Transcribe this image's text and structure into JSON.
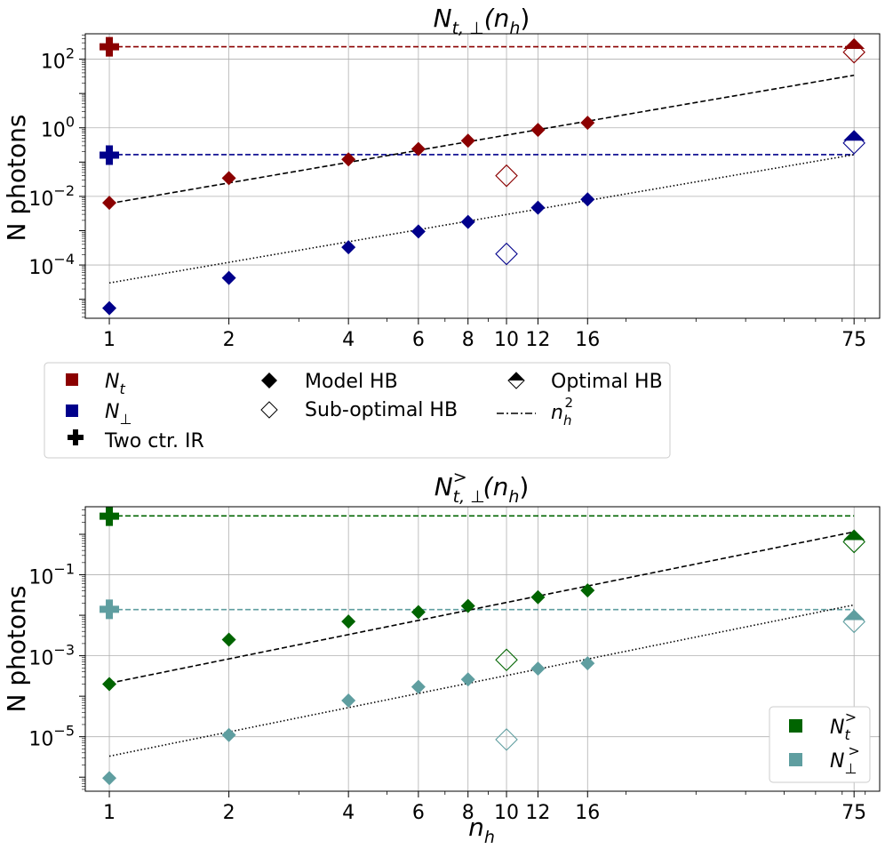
{
  "chart_data": [
    {
      "type": "scatter",
      "title": "N_{t,⊥}(n_h)",
      "title_main": "N",
      "title_sub": "t, ⊥",
      "title_args": "(n",
      "title_args_sub": "h",
      "title_close": ")",
      "xlabel": "",
      "ylabel": "N photons",
      "xscale": "log",
      "yscale": "log",
      "xlim": [
        0.87,
        87
      ],
      "ylim": [
        2.8e-06,
        550
      ],
      "xticks": [
        1,
        2,
        4,
        6,
        8,
        10,
        12,
        16,
        75
      ],
      "xtick_labels": [
        "1",
        "2",
        "4",
        "6",
        "8",
        "10",
        "12",
        "16",
        "75"
      ],
      "yticks": [
        {
          "value": 100,
          "base": "10",
          "exp": "2"
        },
        {
          "value": 1,
          "base": "10",
          "exp": "0"
        },
        {
          "value": 0.01,
          "base": "10",
          "exp": "−2"
        },
        {
          "value": 0.0001,
          "base": "10",
          "exp": "−4"
        }
      ],
      "series": [
        {
          "name": "N_t model HB",
          "color": "#8b0000",
          "marker": "diamond-filled",
          "x": [
            1,
            2,
            4,
            6,
            8,
            12,
            16
          ],
          "y": [
            0.0065,
            0.034,
            0.12,
            0.24,
            0.42,
            0.87,
            1.4
          ]
        },
        {
          "name": "N_⊥ model HB",
          "color": "#00008b",
          "marker": "diamond-filled",
          "x": [
            1,
            2,
            4,
            6,
            8,
            12,
            16
          ],
          "y": [
            5.5e-06,
            4.2e-05,
            0.00033,
            0.00095,
            0.0018,
            0.0047,
            0.0082
          ]
        },
        {
          "name": "N_t two ctr. IR",
          "color": "#8b0000",
          "marker": "plus",
          "x": [
            1
          ],
          "y": [
            230
          ]
        },
        {
          "name": "N_⊥ two ctr. IR",
          "color": "#00008b",
          "marker": "plus",
          "x": [
            1
          ],
          "y": [
            0.16
          ]
        },
        {
          "name": "N_t optimal HB",
          "color": "#8b0000",
          "marker": "diamond-half",
          "x": [
            75
          ],
          "y": [
            200
          ]
        },
        {
          "name": "N_⊥ optimal HB",
          "color": "#00008b",
          "marker": "diamond-half",
          "x": [
            75
          ],
          "y": [
            0.42
          ]
        },
        {
          "name": "N_t sub-optimal HB",
          "color": "#8b0000",
          "marker": "diamond-open",
          "x": [
            10,
            75
          ],
          "y": [
            0.04,
            160
          ]
        },
        {
          "name": "N_⊥ sub-optimal HB",
          "color": "#00008b",
          "marker": "diamond-open",
          "x": [
            10,
            75
          ],
          "y": [
            0.00021,
            0.36
          ]
        }
      ],
      "lines": [
        {
          "name": "N_t two ctr. level",
          "color": "#8b0000",
          "style": "dashed",
          "x": [
            1,
            75
          ],
          "y": [
            230,
            230
          ]
        },
        {
          "name": "N_⊥ two ctr. level",
          "color": "#00008b",
          "style": "dashed",
          "x": [
            1,
            75
          ],
          "y": [
            0.165,
            0.165
          ]
        },
        {
          "name": "n_h^2 fit N_t",
          "color": "#000000",
          "style": "dashed",
          "x": [
            1,
            75
          ],
          "y": [
            0.0062,
            34
          ]
        },
        {
          "name": "n_h^2 fit N_⊥",
          "color": "#000000",
          "style": "dotted",
          "x": [
            1,
            75
          ],
          "y": [
            3e-05,
            0.165
          ]
        }
      ]
    },
    {
      "type": "scatter",
      "title": "N^{>}_{t,⊥}(n_h)",
      "title_main": "N",
      "title_sub": "t, ⊥",
      "title_sup": ">",
      "title_args": "(n",
      "title_args_sub": "h",
      "title_close": ")",
      "xlabel": "n_h",
      "xlabel_main": "n",
      "xlabel_sub": "h",
      "ylabel": "N photons",
      "xscale": "log",
      "yscale": "log",
      "xlim": [
        0.87,
        87
      ],
      "ylim": [
        4.5e-07,
        4.8
      ],
      "xticks": [
        1,
        2,
        4,
        6,
        8,
        10,
        12,
        16,
        75
      ],
      "xtick_labels": [
        "1",
        "2",
        "4",
        "6",
        "8",
        "10",
        "12",
        "16",
        "75"
      ],
      "yticks": [
        {
          "value": 0.1,
          "base": "10",
          "exp": "−1"
        },
        {
          "value": 0.001,
          "base": "10",
          "exp": "−3"
        },
        {
          "value": 1e-05,
          "base": "10",
          "exp": "−5"
        }
      ],
      "series": [
        {
          "name": "N_t^> model HB",
          "color": "#006400",
          "marker": "diamond-filled",
          "x": [
            1,
            2,
            4,
            6,
            8,
            12,
            16
          ],
          "y": [
            0.0002,
            0.0025,
            0.007,
            0.012,
            0.017,
            0.028,
            0.041
          ]
        },
        {
          "name": "N_⊥^> model HB",
          "color": "#5f9ea0",
          "marker": "diamond-filled",
          "x": [
            1,
            2,
            4,
            6,
            8,
            12,
            16
          ],
          "y": [
            9.5e-07,
            1.1e-05,
            7.8e-05,
            0.00017,
            0.00026,
            0.00048,
            0.00065
          ]
        },
        {
          "name": "N_t^> two ctr. IR",
          "color": "#006400",
          "marker": "plus",
          "x": [
            1
          ],
          "y": [
            2.8
          ]
        },
        {
          "name": "N_⊥^> two ctr. IR",
          "color": "#5f9ea0",
          "marker": "plus",
          "x": [
            1
          ],
          "y": [
            0.014
          ]
        },
        {
          "name": "N_t^> optimal HB",
          "color": "#006400",
          "marker": "diamond-half",
          "x": [
            75
          ],
          "y": [
            0.72
          ]
        },
        {
          "name": "N_⊥^> optimal HB",
          "color": "#5f9ea0",
          "marker": "diamond-half",
          "x": [
            75
          ],
          "y": [
            0.0076
          ]
        },
        {
          "name": "N_t^> sub-optimal HB",
          "color": "#006400",
          "marker": "diamond-open",
          "x": [
            10,
            75
          ],
          "y": [
            0.00079,
            0.65
          ]
        },
        {
          "name": "N_⊥^> sub-optimal HB",
          "color": "#5f9ea0",
          "marker": "diamond-open",
          "x": [
            10,
            75
          ],
          "y": [
            8.5e-06,
            0.0069
          ]
        }
      ],
      "lines": [
        {
          "name": "N_t^> two ctr. level",
          "color": "#006400",
          "style": "dashed",
          "x": [
            1,
            75
          ],
          "y": [
            2.85,
            2.85
          ]
        },
        {
          "name": "N_⊥^> two ctr. level",
          "color": "#5f9ea0",
          "style": "dashed",
          "x": [
            1,
            75
          ],
          "y": [
            0.0138,
            0.0138
          ]
        },
        {
          "name": "n_h^2 fit N_t^>",
          "color": "#000000",
          "style": "dashed",
          "x": [
            1,
            75
          ],
          "y": [
            0.00021,
            1.15
          ]
        },
        {
          "name": "n_h^2 fit N_⊥^>",
          "color": "#000000",
          "style": "dotted",
          "x": [
            1,
            75
          ],
          "y": [
            3.3e-06,
            0.018
          ]
        }
      ]
    }
  ],
  "legend_top": {
    "items": [
      {
        "symbol": "square",
        "color": "#8b0000",
        "label_main": "N",
        "label_sub": "t"
      },
      {
        "symbol": "square",
        "color": "#00008b",
        "label_main": "N",
        "label_sub": "⊥"
      },
      {
        "symbol": "plus",
        "color": "#000000",
        "label": "Two ctr. IR"
      },
      {
        "symbol": "diamond-filled",
        "color": "#000000",
        "label": "Model HB"
      },
      {
        "symbol": "diamond-open",
        "color": "#000000",
        "label": "Sub-optimal HB"
      },
      {
        "symbol": "diamond-half",
        "color": "#000000",
        "label": "Optimal HB"
      },
      {
        "symbol": "dashdot",
        "color": "#000000",
        "label_main": "n",
        "label_sub": "h",
        "label_sup": "2"
      }
    ]
  },
  "legend_bottom": {
    "placement": "lower-right",
    "items": [
      {
        "symbol": "square",
        "color": "#006400",
        "label_main": "N",
        "label_sub": "t",
        "label_sup": ">"
      },
      {
        "symbol": "square",
        "color": "#5f9ea0",
        "label_main": "N",
        "label_sub": "⊥",
        "label_sup": ">"
      }
    ]
  }
}
